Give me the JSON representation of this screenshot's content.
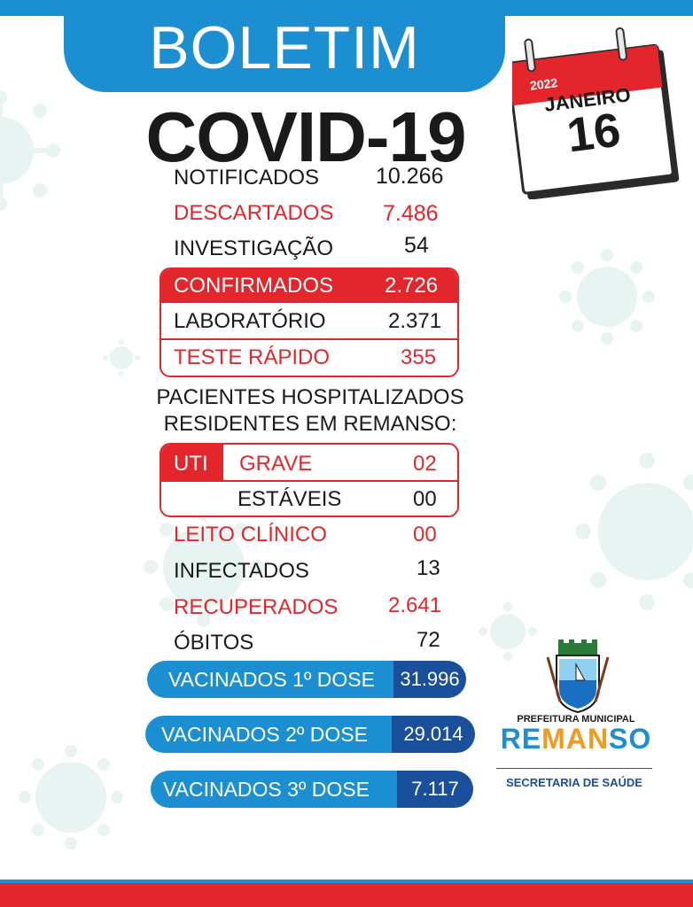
{
  "header": {
    "boletim": "BOLETIM",
    "title": "COVID-19"
  },
  "calendar": {
    "year": "2022",
    "month": "JANEIRO",
    "day": "16"
  },
  "stats": {
    "notificados": {
      "label": "NOTIFICADOS",
      "value": "10.266"
    },
    "descartados": {
      "label": "DESCARTADOS",
      "value": "7.486"
    },
    "investigacao": {
      "label": "INVESTIGAÇÃO",
      "value": "54"
    }
  },
  "confirmed_box": {
    "confirmados": {
      "label": "CONFIRMADOS",
      "value": "2.726"
    },
    "laboratorio": {
      "label": "LABORATÓRIO",
      "value": "2.371"
    },
    "teste_rapido": {
      "label": "TESTE RÁPIDO",
      "value": "355"
    }
  },
  "hospitalized": {
    "title_line1": "PACIENTES HOSPITALIZADOS",
    "title_line2": "RESIDENTES EM REMANSO:",
    "uti_label": "UTI",
    "grave": {
      "label": "GRAVE",
      "value": "02"
    },
    "estaveis": {
      "label": "ESTÁVEIS",
      "value": "00"
    }
  },
  "stats2": {
    "leito_clinico": {
      "label": "LEITO CLÍNICO",
      "value": "00"
    },
    "infectados": {
      "label": "INFECTADOS",
      "value": "13"
    },
    "recuperados": {
      "label": "RECUPERADOS",
      "value": "2.641"
    },
    "obitos": {
      "label": "ÓBITOS",
      "value": "72"
    }
  },
  "vaccines": [
    {
      "label": "VACINADOS 1º DOSE",
      "value": "31.996"
    },
    {
      "label": "VACINADOS 2º DOSE",
      "value": "29.014"
    },
    {
      "label": "VACINADOS 3º DOSE",
      "value": "7.117"
    }
  ],
  "logo": {
    "line1": "PREFEITURA MUNICIPAL",
    "name_part1": "RE",
    "name_part2": "MAN",
    "name_part3": "SO",
    "line3": "SECRETARIA DE SAÚDE"
  },
  "colors": {
    "blue": "#1b8fd2",
    "dark_blue": "#1a4f9c",
    "red": "#e3262b",
    "orange": "#f29a1f"
  }
}
